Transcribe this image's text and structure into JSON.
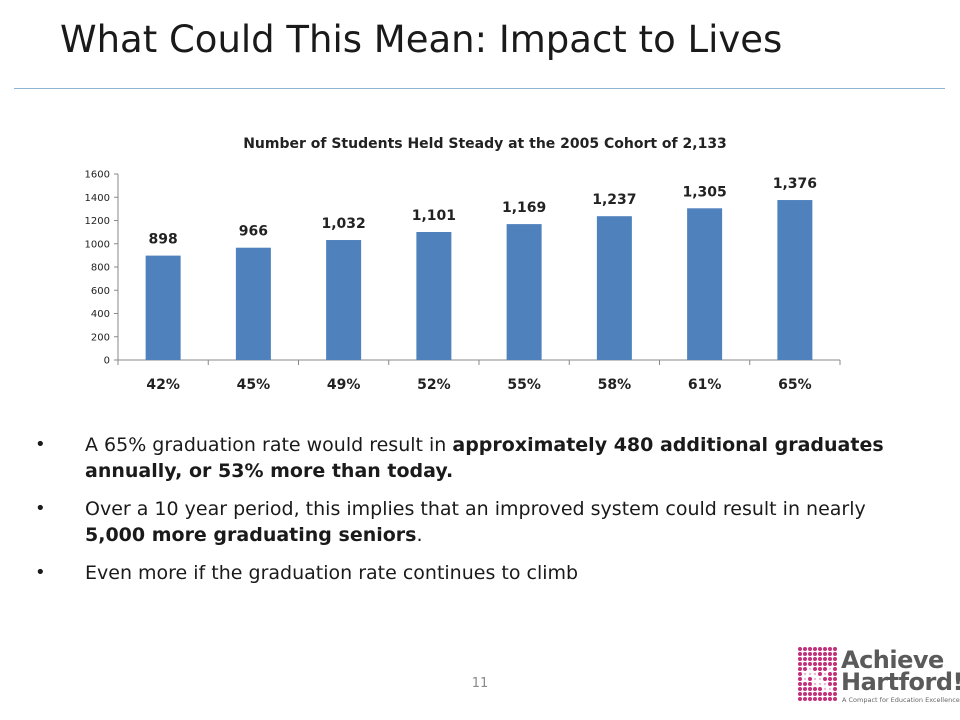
{
  "slide": {
    "title": "What Could This Mean:  Impact to Lives",
    "page_number": "11"
  },
  "bullets": [
    {
      "parts": [
        {
          "text": "A 65% graduation rate would result in ",
          "bold": false
        },
        {
          "text": "approximately 480 additional graduates annually, or 53% more than today.",
          "bold": true
        }
      ]
    },
    {
      "parts": [
        {
          "text": "Over a 10 year period, this implies that an improved system could result in nearly ",
          "bold": false
        },
        {
          "text": "5,000 more graduating seniors",
          "bold": true
        },
        {
          "text": ".",
          "bold": false
        }
      ]
    },
    {
      "parts": [
        {
          "text": "Even more if the graduation rate continues to climb",
          "bold": false
        }
      ]
    }
  ],
  "logo": {
    "line1": "Achieve",
    "line2": "Hartford!",
    "tagline": "A Compact for Education Excellence",
    "colors": {
      "mark": "#c2307a",
      "text": "#5a5a5a"
    }
  },
  "colors": {
    "bar": "#4f81bd",
    "title_rule": "#8fb3d0"
  },
  "chart_data": {
    "type": "bar",
    "title": "Number of Students  Held Steady at the 2005 Cohort  of 2,133",
    "categories": [
      "42%",
      "45%",
      "49%",
      "52%",
      "55%",
      "58%",
      "61%",
      "65%"
    ],
    "values": [
      898,
      966,
      1032,
      1101,
      1169,
      1237,
      1305,
      1376
    ],
    "value_labels": [
      "898",
      "966",
      "1,032",
      "1,101",
      "1,169",
      "1,237",
      "1,305",
      "1,376"
    ],
    "ylim": [
      0,
      1600
    ],
    "yticks": [
      "0",
      "200",
      "400",
      "600",
      "800",
      "1000",
      "1200",
      "1400",
      "1600"
    ],
    "ytick_values": [
      0,
      200,
      400,
      600,
      800,
      1000,
      1200,
      1400,
      1600
    ],
    "xlabel": "",
    "ylabel": "",
    "grid": false,
    "legend": "none"
  }
}
